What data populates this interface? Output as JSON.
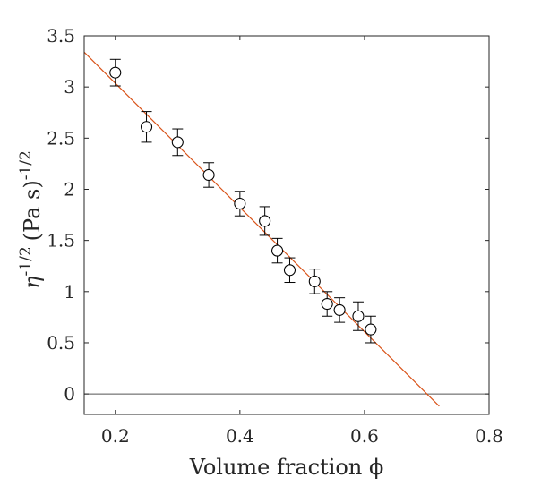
{
  "chart_data": {
    "type": "scatter",
    "xlabel": "Volume fraction ϕ",
    "ylabel_base": "η",
    "ylabel_base_sup": "-1/2",
    "ylabel_unit": "(Pa s)",
    "ylabel_unit_sup": "-1/2",
    "xlim": [
      0.15,
      0.8
    ],
    "ylim": [
      -0.2,
      3.5
    ],
    "xticks": [
      0.2,
      0.4,
      0.6,
      0.8
    ],
    "xtick_labels": [
      "0.2",
      "0.4",
      "0.6",
      "0.8"
    ],
    "yticks": [
      0,
      0.5,
      1,
      1.5,
      2,
      2.5,
      3,
      3.5
    ],
    "ytick_labels": [
      "0",
      "0.5",
      "1",
      "1.5",
      "2",
      "2.5",
      "3",
      "3.5"
    ],
    "grid": false,
    "series": [
      {
        "marker": "open-circle",
        "color": "#000000",
        "points": [
          {
            "x": 0.2,
            "y": 3.14,
            "err": 0.13
          },
          {
            "x": 0.25,
            "y": 2.61,
            "err": 0.15
          },
          {
            "x": 0.3,
            "y": 2.46,
            "err": 0.13
          },
          {
            "x": 0.35,
            "y": 2.14,
            "err": 0.12
          },
          {
            "x": 0.4,
            "y": 1.86,
            "err": 0.12
          },
          {
            "x": 0.44,
            "y": 1.69,
            "err": 0.14
          },
          {
            "x": 0.46,
            "y": 1.4,
            "err": 0.12
          },
          {
            "x": 0.48,
            "y": 1.21,
            "err": 0.12
          },
          {
            "x": 0.52,
            "y": 1.1,
            "err": 0.12
          },
          {
            "x": 0.54,
            "y": 0.88,
            "err": 0.12
          },
          {
            "x": 0.56,
            "y": 0.82,
            "err": 0.12
          },
          {
            "x": 0.59,
            "y": 0.76,
            "err": 0.14
          },
          {
            "x": 0.61,
            "y": 0.63,
            "err": 0.13
          }
        ]
      }
    ],
    "fit_line": {
      "color": "#d95319",
      "x": [
        0.15,
        0.72
      ],
      "y": [
        3.34,
        -0.12
      ]
    },
    "reference_line": {
      "y": 0,
      "color": "#555555"
    }
  }
}
